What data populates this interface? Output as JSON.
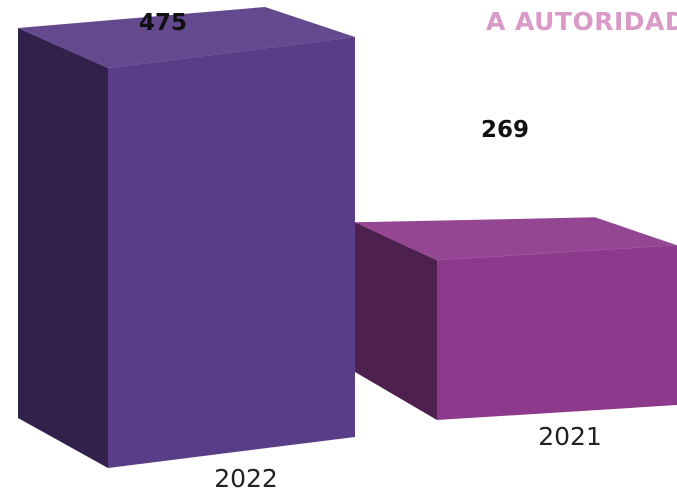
{
  "chart_data": {
    "type": "bar",
    "style": "3d-box",
    "categories": [
      "2022",
      "2021"
    ],
    "values": [
      475,
      269
    ],
    "colors": [
      "#5a3d88",
      "#8e3a8c"
    ],
    "title": "",
    "xlabel": "",
    "ylabel": ""
  },
  "brand": {
    "text": "A AUTORIDADE",
    "color": "#d99ac8"
  }
}
